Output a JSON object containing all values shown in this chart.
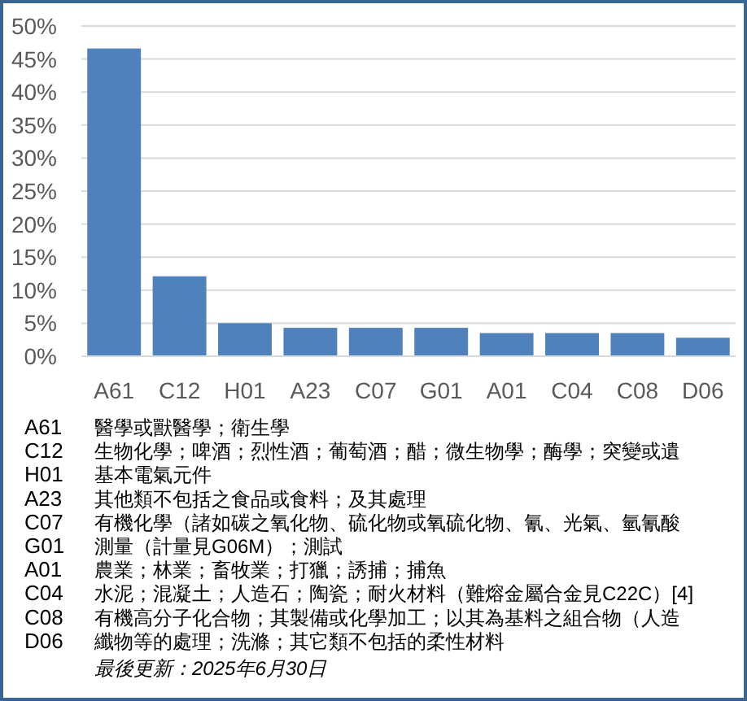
{
  "chart_data": {
    "type": "bar",
    "categories": [
      "A61",
      "C12",
      "H01",
      "A23",
      "C07",
      "G01",
      "A01",
      "C04",
      "C08",
      "D06"
    ],
    "values": [
      46.6,
      12.1,
      5.0,
      4.3,
      4.3,
      4.3,
      3.5,
      3.5,
      3.5,
      2.8
    ],
    "color": "#4f81bd",
    "ylim": [
      0,
      50
    ],
    "yticks": [
      {
        "value": 0,
        "label": "0%"
      },
      {
        "value": 5,
        "label": "5%"
      },
      {
        "value": 10,
        "label": "10%"
      },
      {
        "value": 15,
        "label": "15%"
      },
      {
        "value": 20,
        "label": "20%"
      },
      {
        "value": 25,
        "label": "25%"
      },
      {
        "value": 30,
        "label": "30%"
      },
      {
        "value": 35,
        "label": "35%"
      },
      {
        "value": 40,
        "label": "40%"
      },
      {
        "value": 45,
        "label": "45%"
      },
      {
        "value": 50,
        "label": "50%"
      }
    ],
    "grid": "y",
    "annotations": [
      "A61",
      "醫學或獸醫學；衛生學",
      "C12",
      "生物化學；啤酒；烈性酒；葡萄酒；醋；微生物學；酶學；突變或遺",
      "H01",
      "基本電氣元件",
      "A23",
      "其他類不包括之食品或食料；及其處理",
      "C07",
      "有機化學（諸如碳之氧化物、硫化物或氧硫化物、氰、光氣、氫氰酸",
      "G01",
      "測量（計量見G06M）；測試",
      "A01",
      "農業；林業；畜牧業；打獵；誘捕；捕魚",
      "C04",
      "水泥；混凝土；人造石；陶瓷；耐火材料（難熔金屬合金見C22C）[4]",
      "C08",
      "有機高分子化合物；其製備或化學加工；以其為基料之組合物（人造",
      "D06",
      "纖物等的處理；洗滌；其它類不包括的柔性材料",
      "最後更新：2025年6月30日"
    ]
  }
}
